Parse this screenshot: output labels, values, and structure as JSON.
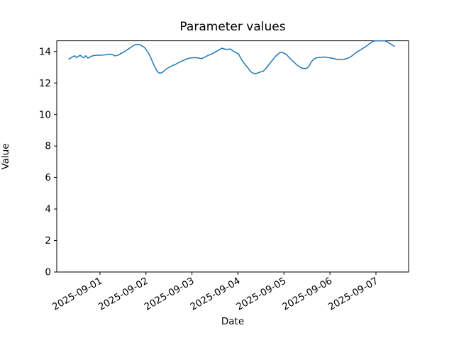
{
  "chart_data": {
    "type": "line",
    "title": "Parameter values",
    "xlabel": "Date",
    "ylabel": "Value",
    "x_unit": "days since 2025-09-01 00:00",
    "xlim": [
      -0.94,
      6.71
    ],
    "ylim": [
      0,
      14.68
    ],
    "yticks": [
      0,
      2,
      4,
      6,
      8,
      10,
      12,
      14
    ],
    "xticks": [
      0,
      1,
      2,
      3,
      4,
      5,
      6
    ],
    "xtick_labels": [
      "2025-09-01",
      "2025-09-02",
      "2025-09-03",
      "2025-09-04",
      "2025-09-05",
      "2025-09-06",
      "2025-09-07"
    ],
    "xtick_rotation_deg": -30,
    "grid": false,
    "legend": null,
    "line_color": "#1f77b4",
    "line_width": 1.5,
    "axis_color": "#000000",
    "background_color": "#ffffff",
    "series": [
      {
        "name": "parameter-values",
        "points": [
          [
            -0.679,
            13.52
          ],
          [
            -0.617,
            13.62
          ],
          [
            -0.555,
            13.73
          ],
          [
            -0.509,
            13.62
          ],
          [
            -0.463,
            13.7
          ],
          [
            -0.432,
            13.77
          ],
          [
            -0.401,
            13.68
          ],
          [
            -0.355,
            13.6
          ],
          [
            -0.309,
            13.73
          ],
          [
            -0.262,
            13.58
          ],
          [
            -0.216,
            13.65
          ],
          [
            -0.17,
            13.72
          ],
          [
            -0.108,
            13.75
          ],
          [
            -0.046,
            13.77
          ],
          [
            0.015,
            13.76
          ],
          [
            0.077,
            13.78
          ],
          [
            0.139,
            13.8
          ],
          [
            0.201,
            13.83
          ],
          [
            0.262,
            13.82
          ],
          [
            0.324,
            13.72
          ],
          [
            0.386,
            13.76
          ],
          [
            0.447,
            13.86
          ],
          [
            0.524,
            13.98
          ],
          [
            0.586,
            14.1
          ],
          [
            0.648,
            14.22
          ],
          [
            0.71,
            14.35
          ],
          [
            0.756,
            14.42
          ],
          [
            0.818,
            14.45
          ],
          [
            0.864,
            14.43
          ],
          [
            0.91,
            14.36
          ],
          [
            0.972,
            14.25
          ],
          [
            1.018,
            14.05
          ],
          [
            1.064,
            13.85
          ],
          [
            1.111,
            13.55
          ],
          [
            1.157,
            13.25
          ],
          [
            1.203,
            12.95
          ],
          [
            1.249,
            12.72
          ],
          [
            1.296,
            12.62
          ],
          [
            1.342,
            12.65
          ],
          [
            1.388,
            12.75
          ],
          [
            1.435,
            12.88
          ],
          [
            1.496,
            12.98
          ],
          [
            1.573,
            13.1
          ],
          [
            1.65,
            13.2
          ],
          [
            1.728,
            13.32
          ],
          [
            1.805,
            13.42
          ],
          [
            1.882,
            13.52
          ],
          [
            1.944,
            13.58
          ],
          [
            2.005,
            13.6
          ],
          [
            2.067,
            13.61
          ],
          [
            2.129,
            13.6
          ],
          [
            2.19,
            13.55
          ],
          [
            2.237,
            13.58
          ],
          [
            2.283,
            13.65
          ],
          [
            2.329,
            13.72
          ],
          [
            2.375,
            13.78
          ],
          [
            2.437,
            13.85
          ],
          [
            2.499,
            13.95
          ],
          [
            2.576,
            14.08
          ],
          [
            2.653,
            14.21
          ],
          [
            2.715,
            14.15
          ],
          [
            2.777,
            14.14
          ],
          [
            2.838,
            14.16
          ],
          [
            2.884,
            14.05
          ],
          [
            2.946,
            13.95
          ],
          [
            3.008,
            13.85
          ],
          [
            3.07,
            13.53
          ],
          [
            3.147,
            13.2
          ],
          [
            3.224,
            12.93
          ],
          [
            3.27,
            12.74
          ],
          [
            3.332,
            12.62
          ],
          [
            3.394,
            12.6
          ],
          [
            3.455,
            12.66
          ],
          [
            3.501,
            12.72
          ],
          [
            3.548,
            12.74
          ],
          [
            3.609,
            12.93
          ],
          [
            3.687,
            13.23
          ],
          [
            3.764,
            13.5
          ],
          [
            3.81,
            13.68
          ],
          [
            3.872,
            13.83
          ],
          [
            3.918,
            13.95
          ],
          [
            3.964,
            13.93
          ],
          [
            4.011,
            13.88
          ],
          [
            4.057,
            13.8
          ],
          [
            4.118,
            13.6
          ],
          [
            4.18,
            13.42
          ],
          [
            4.242,
            13.25
          ],
          [
            4.304,
            13.1
          ],
          [
            4.365,
            12.98
          ],
          [
            4.412,
            12.93
          ],
          [
            4.458,
            12.92
          ],
          [
            4.504,
            12.95
          ],
          [
            4.55,
            13.1
          ],
          [
            4.597,
            13.35
          ],
          [
            4.643,
            13.5
          ],
          [
            4.689,
            13.58
          ],
          [
            4.751,
            13.62
          ],
          [
            4.813,
            13.63
          ],
          [
            4.874,
            13.65
          ],
          [
            4.936,
            13.62
          ],
          [
            4.998,
            13.6
          ],
          [
            5.059,
            13.57
          ],
          [
            5.121,
            13.52
          ],
          [
            5.183,
            13.5
          ],
          [
            5.245,
            13.5
          ],
          [
            5.306,
            13.51
          ],
          [
            5.368,
            13.55
          ],
          [
            5.43,
            13.62
          ],
          [
            5.491,
            13.75
          ],
          [
            5.553,
            13.9
          ],
          [
            5.615,
            14.02
          ],
          [
            5.676,
            14.12
          ],
          [
            5.738,
            14.24
          ],
          [
            5.8,
            14.36
          ],
          [
            5.862,
            14.5
          ],
          [
            5.923,
            14.62
          ],
          [
            5.969,
            14.67
          ],
          [
            6.016,
            14.68
          ],
          [
            6.077,
            14.68
          ],
          [
            6.139,
            14.68
          ],
          [
            6.201,
            14.67
          ],
          [
            6.263,
            14.58
          ],
          [
            6.324,
            14.47
          ],
          [
            6.371,
            14.38
          ],
          [
            6.401,
            14.33
          ]
        ]
      }
    ]
  }
}
